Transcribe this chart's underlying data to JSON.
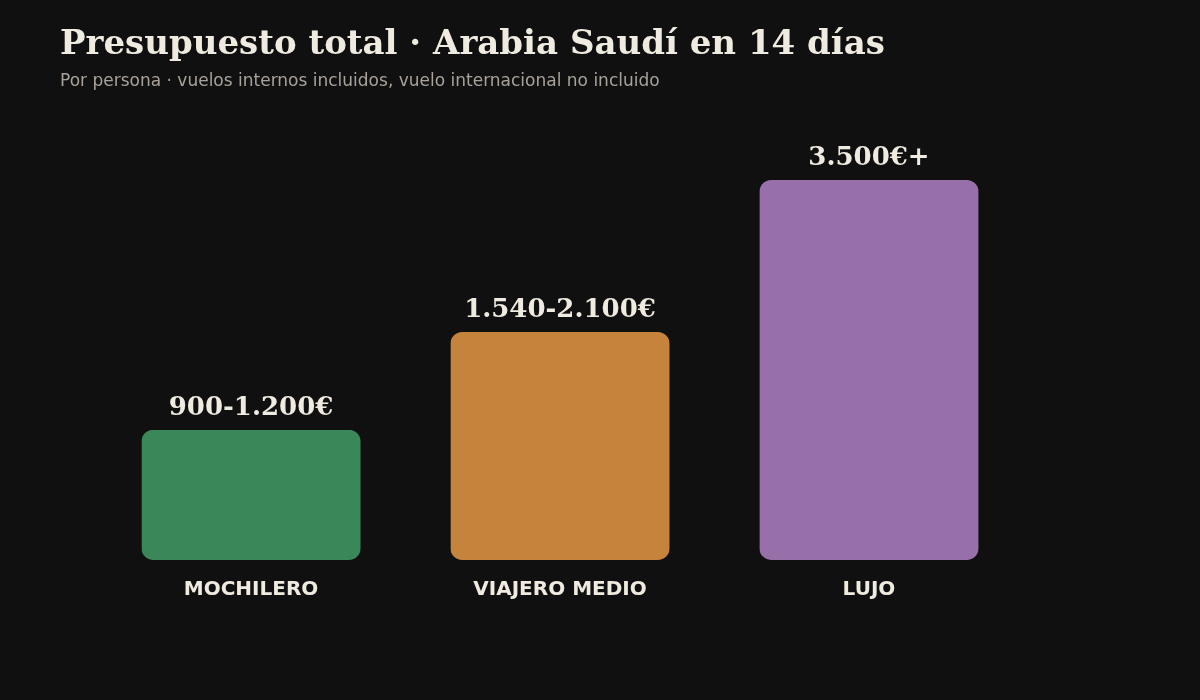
{
  "chart_data": {
    "type": "bar",
    "title": "Presupuesto total · Arabia Saudí en 14 días",
    "subtitle": "Por persona · vuelos internos incluidos, vuelo internacional no incluido",
    "categories": [
      "MOCHILERO",
      "VIAJERO MEDIO",
      "LUJO"
    ],
    "values": [
      1200,
      2100,
      3500
    ],
    "colors": [
      "#3a875a",
      "#c6833c",
      "#976fa9"
    ],
    "value_labels": [
      "900-1.200€",
      "1.540-2.100€",
      "3.500€+"
    ],
    "legend": false
  }
}
